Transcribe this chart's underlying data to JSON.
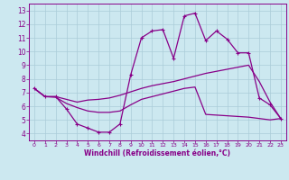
{
  "xlabel": "Windchill (Refroidissement éolien,°C)",
  "xlim": [
    -0.5,
    23.5
  ],
  "ylim": [
    3.5,
    13.5
  ],
  "yticks": [
    4,
    5,
    6,
    7,
    8,
    9,
    10,
    11,
    12,
    13
  ],
  "xticks": [
    0,
    1,
    2,
    3,
    4,
    5,
    6,
    7,
    8,
    9,
    10,
    11,
    12,
    13,
    14,
    15,
    16,
    17,
    18,
    19,
    20,
    21,
    22,
    23
  ],
  "background_color": "#cce8f0",
  "grid_color": "#aaccd8",
  "line_color": "#880088",
  "lines": [
    {
      "x": [
        0,
        1,
        2,
        3,
        4,
        5,
        6,
        7,
        8,
        9,
        10,
        11,
        12,
        13,
        14,
        15,
        16,
        17,
        18,
        19,
        20,
        21,
        22,
        23
      ],
      "y": [
        7.3,
        6.7,
        6.7,
        5.8,
        4.7,
        4.4,
        4.1,
        4.1,
        4.7,
        8.3,
        11.0,
        11.5,
        11.6,
        9.5,
        12.6,
        12.8,
        10.8,
        11.5,
        10.9,
        9.9,
        9.9,
        6.6,
        6.1,
        5.1
      ],
      "marker": "+",
      "lw": 0.9
    },
    {
      "x": [
        0,
        1,
        2,
        3,
        4,
        5,
        6,
        7,
        8,
        9,
        10,
        11,
        12,
        13,
        14,
        15,
        16,
        17,
        18,
        19,
        20,
        21,
        22,
        23
      ],
      "y": [
        7.3,
        6.7,
        6.7,
        6.5,
        6.3,
        6.45,
        6.5,
        6.6,
        6.8,
        7.05,
        7.3,
        7.5,
        7.65,
        7.8,
        8.0,
        8.2,
        8.4,
        8.55,
        8.7,
        8.85,
        9.0,
        7.8,
        6.3,
        5.1
      ],
      "marker": null,
      "lw": 0.9
    },
    {
      "x": [
        0,
        1,
        2,
        3,
        4,
        5,
        6,
        7,
        8,
        9,
        10,
        11,
        12,
        13,
        14,
        15,
        16,
        17,
        18,
        19,
        20,
        21,
        22,
        23
      ],
      "y": [
        7.3,
        6.7,
        6.65,
        6.2,
        5.9,
        5.65,
        5.55,
        5.55,
        5.65,
        6.1,
        6.5,
        6.7,
        6.9,
        7.1,
        7.3,
        7.4,
        5.4,
        5.35,
        5.3,
        5.25,
        5.2,
        5.1,
        5.0,
        5.1
      ],
      "marker": null,
      "lw": 0.9
    }
  ]
}
